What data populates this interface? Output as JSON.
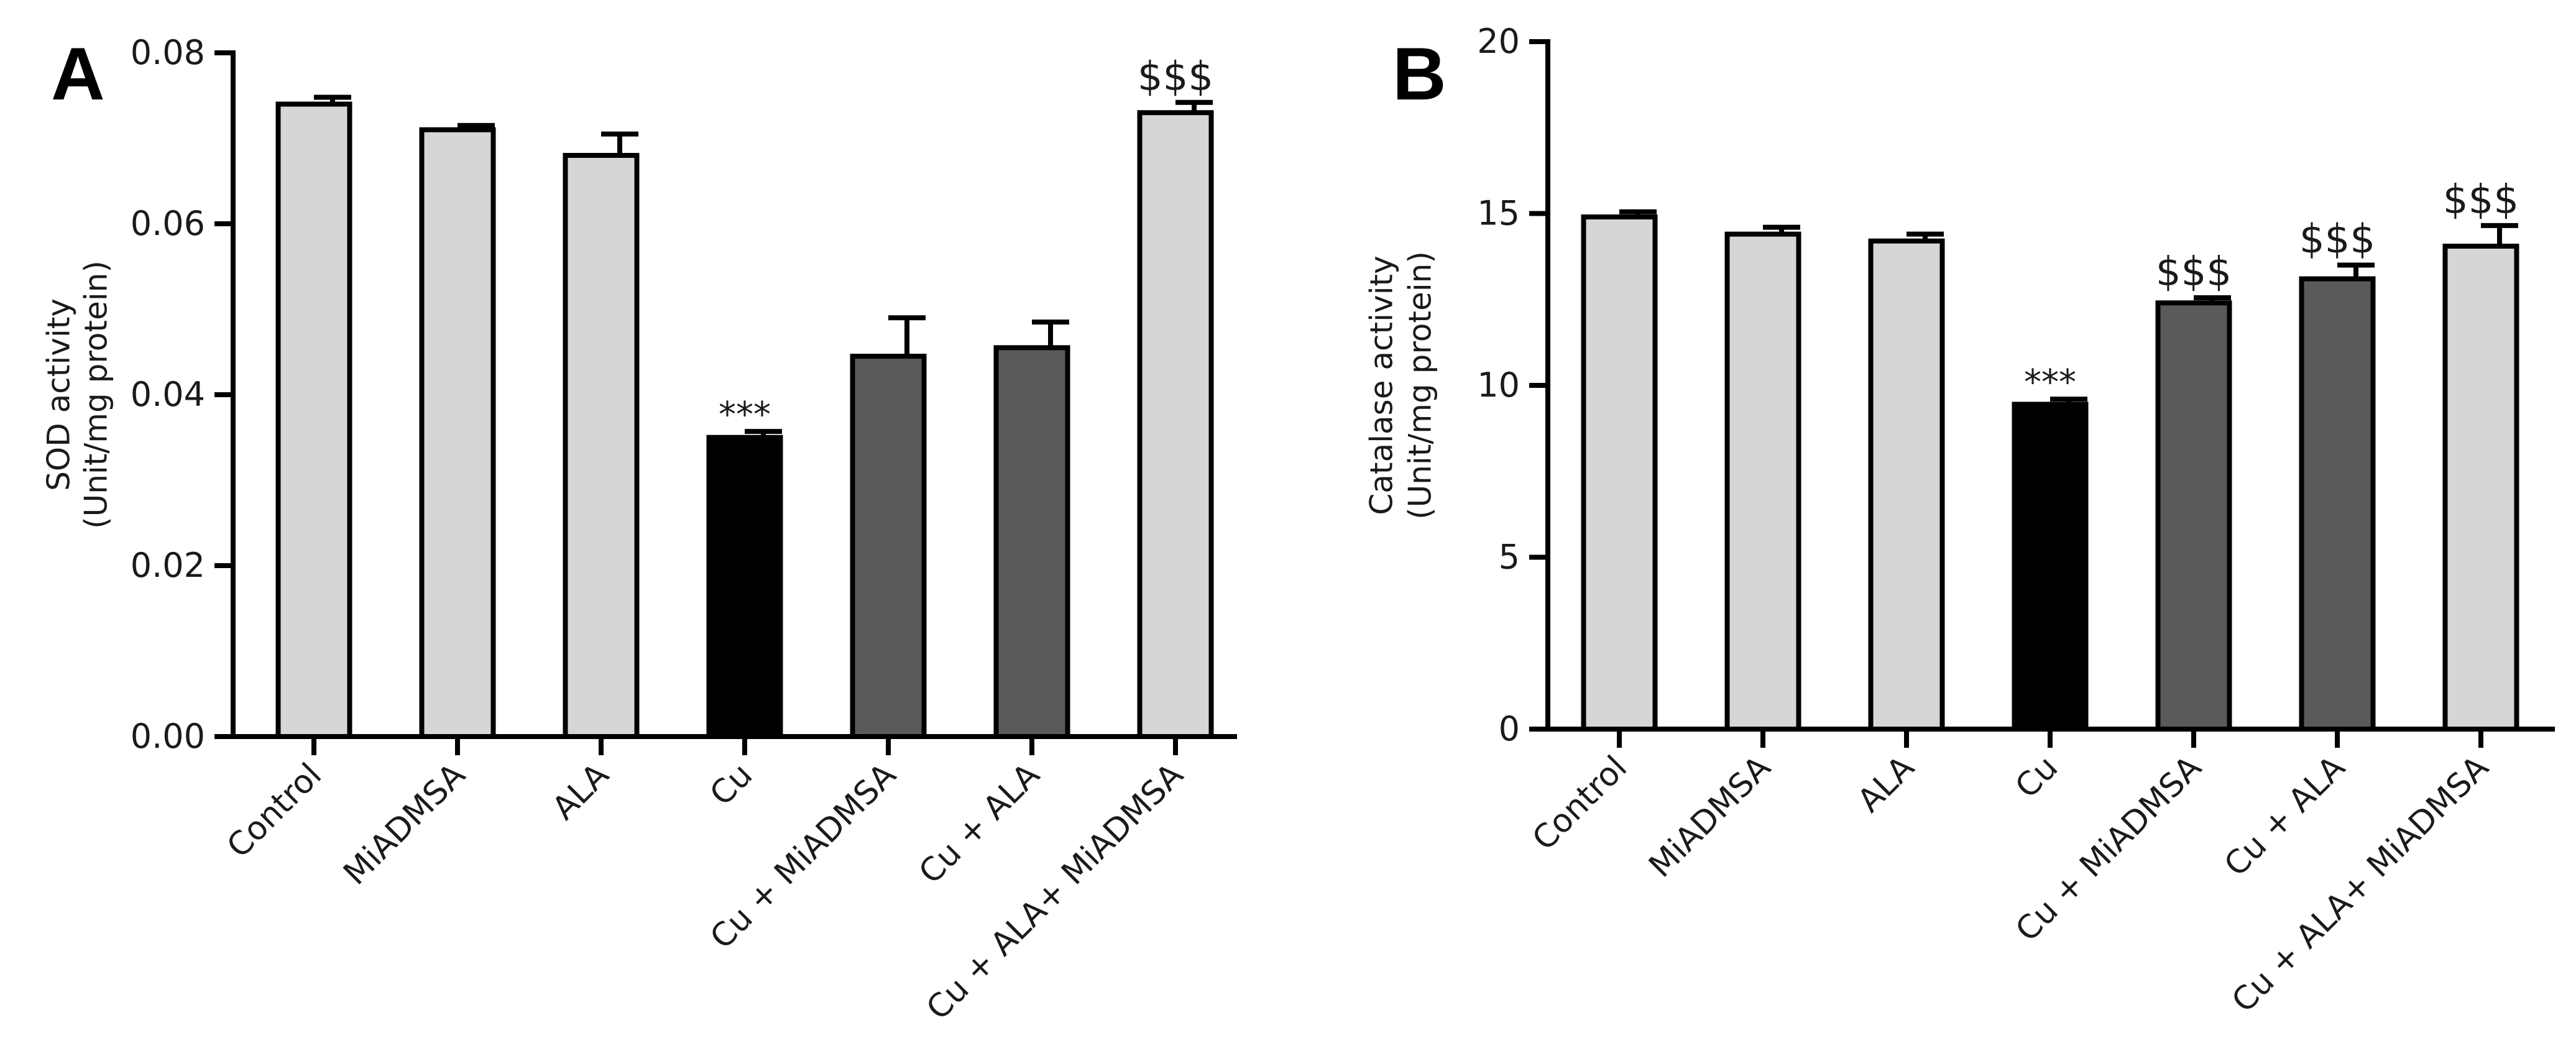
{
  "colors": {
    "light": "#d6d6d6",
    "dark": "#5a5a5a",
    "black": "#000000",
    "stroke": "#000000",
    "text": "#1a1a1a"
  },
  "chart_data": [
    {
      "type": "bar",
      "panel": "A",
      "ylabel_line1": "SOD activity",
      "ylabel_line2": "(Unit/mg protein)",
      "ylim": [
        0,
        0.08
      ],
      "ytick_labels": [
        "0.00",
        "0.02",
        "0.04",
        "0.06",
        "0.08"
      ],
      "categories": [
        "Control",
        "MiADMSA",
        "ALA",
        "Cu",
        "Cu + MiADMSA",
        "Cu + ALA",
        "Cu + ALA+ MiADMSA"
      ],
      "values": [
        0.074,
        0.071,
        0.068,
        0.035,
        0.0445,
        0.0455,
        0.073
      ],
      "errors": [
        0.0008,
        0.0005,
        0.0025,
        0.0007,
        0.0045,
        0.003,
        0.0012
      ],
      "fills": [
        "light",
        "light",
        "light",
        "black",
        "dark",
        "dark",
        "light"
      ],
      "annotations": [
        "",
        "",
        "",
        "***",
        "",
        "",
        "$$$"
      ]
    },
    {
      "type": "bar",
      "panel": "B",
      "ylabel_line1": "Catalase activity",
      "ylabel_line2": "(Unit/mg protein)",
      "ylim": [
        0,
        20
      ],
      "ytick_labels": [
        "0",
        "5",
        "10",
        "15",
        "20"
      ],
      "categories": [
        "Control",
        "MiADMSA",
        "ALA",
        "Cu",
        "Cu + MiADMSA",
        "Cu + ALA",
        "Cu + ALA+ MiADMSA"
      ],
      "values": [
        14.9,
        14.4,
        14.2,
        9.45,
        12.4,
        13.1,
        14.05
      ],
      "errors": [
        0.15,
        0.2,
        0.2,
        0.15,
        0.15,
        0.4,
        0.6
      ],
      "fills": [
        "light",
        "light",
        "light",
        "black",
        "dark",
        "dark",
        "light"
      ],
      "annotations": [
        "",
        "",
        "",
        "***",
        "$$$",
        "$$$",
        "$$$"
      ]
    }
  ]
}
